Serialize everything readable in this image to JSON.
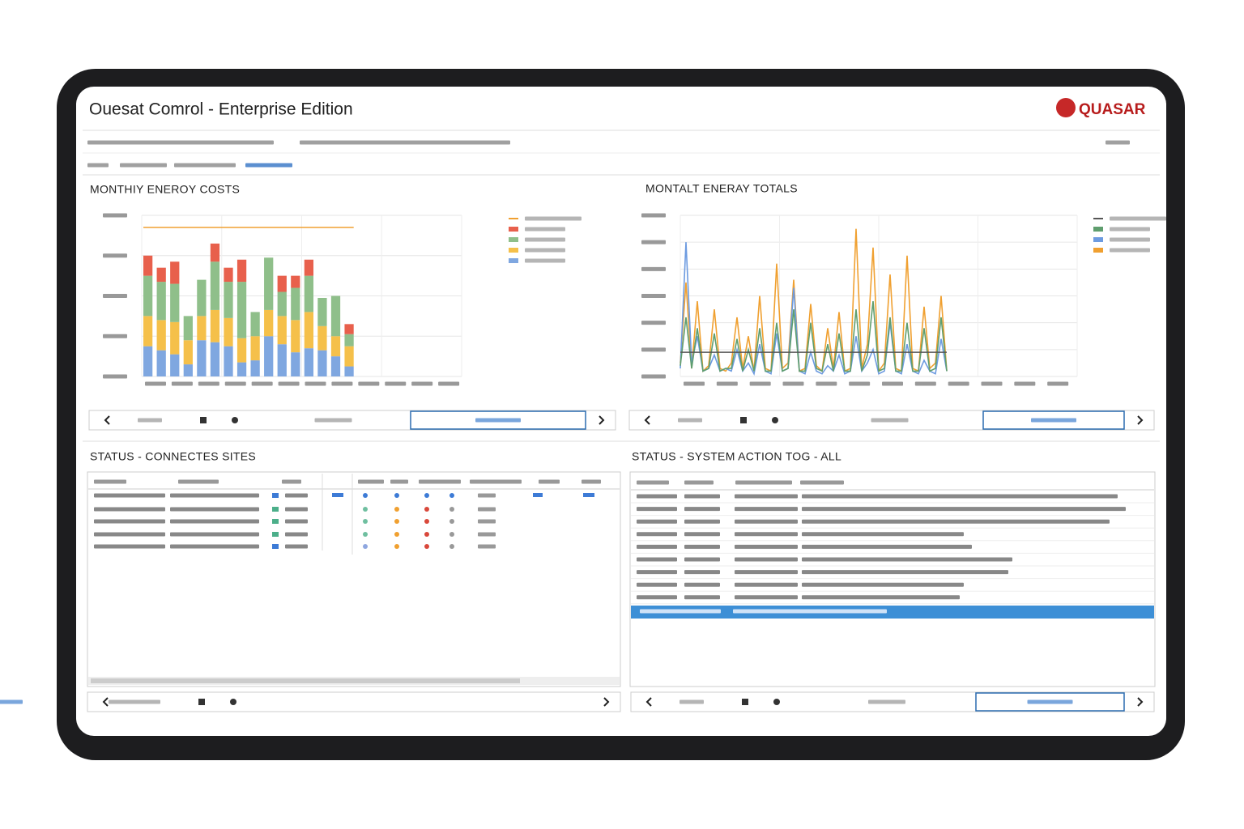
{
  "header": {
    "title": "Ouesat Comrol - Enterprise Edition",
    "brand": "QUASAR"
  },
  "panels": [
    {
      "title": "MONTHIY ENEROY COSTS",
      "chart_data": {
        "type": "bar",
        "stacked": true,
        "ylim": [
          0,
          4
        ],
        "yticks": [
          0,
          1,
          2,
          3,
          4
        ],
        "grid": true,
        "series": [
          {
            "color": "#7fa7e0",
            "values": [
              0.75,
              0.65,
              0.55,
              0.3,
              0.9,
              0.85,
              0.75,
              0.35,
              0.4,
              1.0,
              0.8,
              0.6,
              0.7,
              0.65,
              0.5,
              0.25
            ]
          },
          {
            "color": "#f5c04a",
            "values": [
              0.75,
              0.75,
              0.8,
              0.6,
              0.6,
              0.8,
              0.7,
              0.6,
              0.6,
              0.65,
              0.7,
              0.8,
              0.9,
              0.6,
              0.5,
              0.5
            ]
          },
          {
            "color": "#8fbf8a",
            "values": [
              1.0,
              0.95,
              0.95,
              0.6,
              0.9,
              1.2,
              0.9,
              1.4,
              0.6,
              1.3,
              0.6,
              0.8,
              0.9,
              0.7,
              1.0,
              0.3
            ]
          },
          {
            "color": "#e8604c",
            "values": [
              0.5,
              0.35,
              0.55,
              0,
              0,
              0.45,
              0.35,
              0.55,
              0,
              0,
              0.4,
              0.3,
              0.4,
              0,
              0,
              0.25
            ]
          }
        ],
        "reference_line": {
          "value": 3.7,
          "color": "#f0a030"
        }
      }
    },
    {
      "title": "MONTALT ENERAY TOTALS",
      "chart_data": {
        "type": "line",
        "xlim": [
          0,
          70
        ],
        "ylim": [
          0,
          6
        ],
        "yticks": [
          0,
          1,
          2,
          3,
          4,
          5,
          6
        ],
        "grid": true,
        "series": [
          {
            "color": "#f0a030",
            "values": [
              0.5,
              3.5,
              0.3,
              2.8,
              0.2,
              0.4,
              2.5,
              0.3,
              0.2,
              0.5,
              2.2,
              0.3,
              1.5,
              0.2,
              3.0,
              0.3,
              0.2,
              4.2,
              0.3,
              0.5,
              3.6,
              0.2,
              0.3,
              2.7,
              0.4,
              0.2,
              1.8,
              0.3,
              2.4,
              0.2,
              0.3,
              5.5,
              0.3,
              1.2,
              4.8,
              0.2,
              0.5,
              3.8,
              0.3,
              0.2,
              4.5,
              0.3,
              0.2,
              2.6,
              0.3,
              0.5,
              3.0,
              0.2
            ]
          },
          {
            "color": "#6d9be0",
            "values": [
              0.3,
              5.0,
              0.5,
              1.5,
              0.2,
              0.3,
              0.8,
              0.2,
              0.3,
              0.2,
              1.0,
              0.2,
              0.5,
              0.1,
              1.2,
              0.2,
              0.1,
              1.6,
              0.2,
              0.3,
              3.3,
              0.2,
              0.1,
              0.9,
              0.2,
              0.1,
              0.4,
              0.2,
              0.8,
              0.1,
              0.2,
              1.5,
              0.2,
              0.5,
              1.0,
              0.1,
              0.2,
              2.0,
              0.2,
              0.1,
              1.2,
              0.2,
              0.1,
              0.6,
              0.2,
              0.1,
              1.4,
              0.2
            ]
          },
          {
            "color": "#5f9e6e",
            "values": [
              0.4,
              2.2,
              0.3,
              1.8,
              0.2,
              0.3,
              1.6,
              0.2,
              0.3,
              0.3,
              1.4,
              0.2,
              1.0,
              0.2,
              1.8,
              0.2,
              0.2,
              2.0,
              0.2,
              0.3,
              2.5,
              0.2,
              0.2,
              2.0,
              0.3,
              0.2,
              1.2,
              0.2,
              1.6,
              0.2,
              0.2,
              2.5,
              0.2,
              0.8,
              2.8,
              0.2,
              0.3,
              2.2,
              0.2,
              0.2,
              2.0,
              0.2,
              0.2,
              1.8,
              0.2,
              0.3,
              2.2,
              0.2
            ]
          }
        ],
        "reference_line": {
          "value": 0.9,
          "color": "#555555"
        }
      }
    },
    {
      "title": "STATUS - CONNECTES SITES"
    },
    {
      "title": "STATUS - SYSTEM ACTION TOG - ALL"
    }
  ]
}
